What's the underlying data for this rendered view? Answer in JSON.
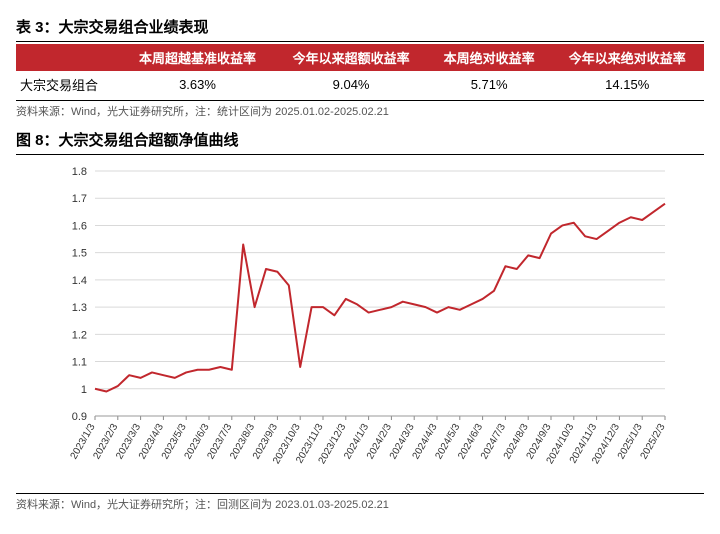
{
  "table3": {
    "title": "表 3：大宗交易组合业绩表现",
    "header_bg": "#c1272d",
    "columns": [
      "",
      "本周超越基准收益率",
      "今年以来超额收益率",
      "本周绝对收益率",
      "今年以来绝对收益率"
    ],
    "row_label": "大宗交易组合",
    "row_values": [
      "3.63%",
      "9.04%",
      "5.71%",
      "14.15%"
    ],
    "source": "资料来源：Wind，光大证券研究所，注：统计区间为 2025.01.02-2025.02.21"
  },
  "figure8": {
    "title": "图 8：大宗交易组合超额净值曲线",
    "source": "资料来源：Wind，光大证券研究所；注：回测区间为 2023.01.03-2025.02.21",
    "chart": {
      "type": "line",
      "line_color": "#c1272d",
      "line_width": 2,
      "background_color": "#ffffff",
      "grid_color": "#d9d9d9",
      "ylim": [
        0.9,
        1.8
      ],
      "ytick_step": 0.1,
      "yticks": [
        "0.9",
        "1",
        "1.1",
        "1.2",
        "1.3",
        "1.4",
        "1.5",
        "1.6",
        "1.7",
        "1.8"
      ],
      "xlabels": [
        "2023/1/3",
        "2023/2/3",
        "2023/3/3",
        "2023/4/3",
        "2023/5/3",
        "2023/6/3",
        "2023/7/3",
        "2023/8/3",
        "2023/9/3",
        "2023/10/3",
        "2023/11/3",
        "2023/12/3",
        "2024/1/3",
        "2024/2/3",
        "2024/3/3",
        "2024/4/3",
        "2024/5/3",
        "2024/6/3",
        "2024/7/3",
        "2024/8/3",
        "2024/9/3",
        "2024/10/3",
        "2024/11/3",
        "2024/12/3",
        "2025/1/3",
        "2025/2/3"
      ],
      "values": [
        1.0,
        0.99,
        1.01,
        1.05,
        1.04,
        1.06,
        1.05,
        1.04,
        1.06,
        1.07,
        1.07,
        1.08,
        1.07,
        1.53,
        1.3,
        1.44,
        1.43,
        1.38,
        1.08,
        1.3,
        1.3,
        1.27,
        1.33,
        1.31,
        1.28,
        1.29,
        1.3,
        1.32,
        1.31,
        1.3,
        1.28,
        1.3,
        1.29,
        1.31,
        1.33,
        1.36,
        1.45,
        1.44,
        1.49,
        1.48,
        1.57,
        1.6,
        1.61,
        1.56,
        1.55,
        1.58,
        1.61,
        1.63,
        1.62,
        1.65,
        1.68
      ],
      "label_fontsize": 11,
      "xlabel_fontsize": 10
    }
  }
}
